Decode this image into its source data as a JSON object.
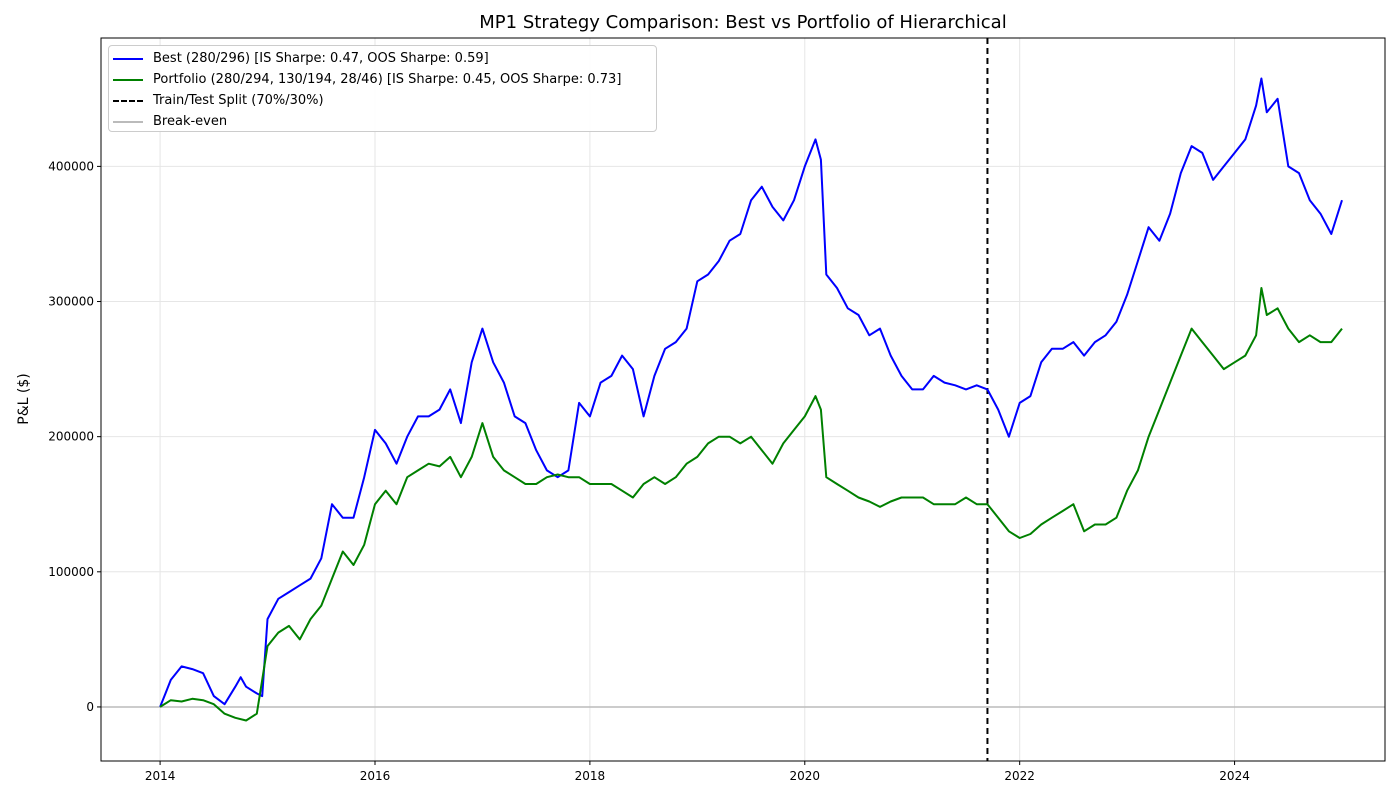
{
  "chart_data": {
    "type": "line",
    "title": "MP1 Strategy Comparison: Best vs Portfolio of Hierarchical",
    "xlabel": "",
    "ylabel": "P&L ($)",
    "xlim": [
      2013.45,
      2025.4
    ],
    "ylim": [
      -40000,
      495000
    ],
    "x_ticks": [
      2014,
      2016,
      2018,
      2020,
      2022,
      2024
    ],
    "y_ticks": [
      0,
      100000,
      200000,
      300000,
      400000
    ],
    "grid": true,
    "legend_position": "upper-left",
    "legend": [
      {
        "label": "Best (280/296) [IS Sharpe: 0.47, OOS Sharpe: 0.59]",
        "color": "#0000ff",
        "style": "solid"
      },
      {
        "label": "Portfolio (280/294, 130/194, 28/46) [IS Sharpe: 0.45, OOS Sharpe: 0.73]",
        "color": "#008000",
        "style": "solid"
      },
      {
        "label": "Train/Test Split (70%/30%)",
        "color": "#000000",
        "style": "dashed"
      },
      {
        "label": "Break-even",
        "color": "#bbbbbb",
        "style": "solid"
      }
    ],
    "split_x": 2021.7,
    "breakeven_y": 0,
    "series": [
      {
        "name": "Best (280/296) [IS Sharpe: 0.47, OOS Sharpe: 0.59]",
        "color": "#0000ff",
        "x": [
          2014.0,
          2014.05,
          2014.1,
          2014.2,
          2014.3,
          2014.4,
          2014.5,
          2014.6,
          2014.7,
          2014.75,
          2014.8,
          2014.9,
          2014.95,
          2015.0,
          2015.1,
          2015.2,
          2015.3,
          2015.4,
          2015.5,
          2015.6,
          2015.7,
          2015.8,
          2015.9,
          2016.0,
          2016.1,
          2016.2,
          2016.3,
          2016.4,
          2016.5,
          2016.6,
          2016.7,
          2016.8,
          2016.9,
          2017.0,
          2017.1,
          2017.2,
          2017.3,
          2017.4,
          2017.5,
          2017.6,
          2017.7,
          2017.8,
          2017.9,
          2018.0,
          2018.1,
          2018.2,
          2018.3,
          2018.4,
          2018.5,
          2018.6,
          2018.7,
          2018.8,
          2018.9,
          2019.0,
          2019.1,
          2019.2,
          2019.3,
          2019.4,
          2019.5,
          2019.6,
          2019.7,
          2019.8,
          2019.9,
          2020.0,
          2020.1,
          2020.15,
          2020.2,
          2020.3,
          2020.4,
          2020.5,
          2020.6,
          2020.7,
          2020.8,
          2020.9,
          2021.0,
          2021.1,
          2021.2,
          2021.3,
          2021.4,
          2021.5,
          2021.6,
          2021.7,
          2021.8,
          2021.9,
          2022.0,
          2022.1,
          2022.2,
          2022.3,
          2022.4,
          2022.5,
          2022.6,
          2022.7,
          2022.8,
          2022.9,
          2023.0,
          2023.1,
          2023.2,
          2023.3,
          2023.4,
          2023.5,
          2023.6,
          2023.7,
          2023.8,
          2023.9,
          2024.0,
          2024.1,
          2024.2,
          2024.25,
          2024.3,
          2024.4,
          2024.5,
          2024.6,
          2024.7,
          2024.8,
          2024.9,
          2025.0
        ],
        "values": [
          0,
          10000,
          20000,
          30000,
          28000,
          25000,
          8000,
          2000,
          15000,
          22000,
          15000,
          10000,
          8000,
          65000,
          80000,
          85000,
          90000,
          95000,
          110000,
          150000,
          140000,
          140000,
          170000,
          205000,
          195000,
          180000,
          200000,
          215000,
          215000,
          220000,
          235000,
          210000,
          255000,
          280000,
          255000,
          240000,
          215000,
          210000,
          190000,
          175000,
          170000,
          175000,
          225000,
          215000,
          240000,
          245000,
          260000,
          250000,
          215000,
          245000,
          265000,
          270000,
          280000,
          315000,
          320000,
          330000,
          345000,
          350000,
          375000,
          385000,
          370000,
          360000,
          375000,
          400000,
          420000,
          405000,
          320000,
          310000,
          295000,
          290000,
          275000,
          280000,
          260000,
          245000,
          235000,
          235000,
          245000,
          240000,
          238000,
          235000,
          238000,
          235000,
          220000,
          200000,
          225000,
          230000,
          255000,
          265000,
          265000,
          270000,
          260000,
          270000,
          275000,
          285000,
          305000,
          330000,
          355000,
          345000,
          365000,
          395000,
          415000,
          410000,
          390000,
          400000,
          410000,
          420000,
          445000,
          465000,
          440000,
          450000,
          400000,
          395000,
          375000,
          365000,
          350000,
          375000
        ]
      },
      {
        "name": "Portfolio (280/294, 130/194, 28/46) [IS Sharpe: 0.45, OOS Sharpe: 0.73]",
        "color": "#008000",
        "x": [
          2014.0,
          2014.1,
          2014.2,
          2014.3,
          2014.4,
          2014.5,
          2014.6,
          2014.7,
          2014.8,
          2014.9,
          2014.95,
          2015.0,
          2015.1,
          2015.2,
          2015.3,
          2015.4,
          2015.5,
          2015.6,
          2015.7,
          2015.8,
          2015.9,
          2016.0,
          2016.1,
          2016.2,
          2016.3,
          2016.4,
          2016.5,
          2016.6,
          2016.7,
          2016.8,
          2016.9,
          2017.0,
          2017.1,
          2017.2,
          2017.3,
          2017.4,
          2017.5,
          2017.6,
          2017.7,
          2017.8,
          2017.9,
          2018.0,
          2018.1,
          2018.2,
          2018.3,
          2018.4,
          2018.5,
          2018.6,
          2018.7,
          2018.8,
          2018.9,
          2019.0,
          2019.1,
          2019.2,
          2019.3,
          2019.4,
          2019.5,
          2019.6,
          2019.7,
          2019.8,
          2019.9,
          2020.0,
          2020.1,
          2020.15,
          2020.2,
          2020.3,
          2020.4,
          2020.5,
          2020.6,
          2020.7,
          2020.8,
          2020.9,
          2021.0,
          2021.1,
          2021.2,
          2021.3,
          2021.4,
          2021.5,
          2021.6,
          2021.7,
          2021.8,
          2021.9,
          2022.0,
          2022.1,
          2022.2,
          2022.3,
          2022.4,
          2022.5,
          2022.6,
          2022.7,
          2022.8,
          2022.9,
          2023.0,
          2023.1,
          2023.2,
          2023.3,
          2023.4,
          2023.5,
          2023.6,
          2023.7,
          2023.8,
          2023.9,
          2024.0,
          2024.1,
          2024.2,
          2024.25,
          2024.3,
          2024.4,
          2024.5,
          2024.6,
          2024.7,
          2024.8,
          2024.9,
          2025.0
        ],
        "values": [
          0,
          5000,
          4000,
          6000,
          5000,
          2000,
          -5000,
          -8000,
          -10000,
          -5000,
          20000,
          45000,
          55000,
          60000,
          50000,
          65000,
          75000,
          95000,
          115000,
          105000,
          120000,
          150000,
          160000,
          150000,
          170000,
          175000,
          180000,
          178000,
          185000,
          170000,
          185000,
          210000,
          185000,
          175000,
          170000,
          165000,
          165000,
          170000,
          172000,
          170000,
          170000,
          165000,
          165000,
          165000,
          160000,
          155000,
          165000,
          170000,
          165000,
          170000,
          180000,
          185000,
          195000,
          200000,
          200000,
          195000,
          200000,
          190000,
          180000,
          195000,
          205000,
          215000,
          230000,
          220000,
          170000,
          165000,
          160000,
          155000,
          152000,
          148000,
          152000,
          155000,
          155000,
          155000,
          150000,
          150000,
          150000,
          155000,
          150000,
          150000,
          140000,
          130000,
          125000,
          128000,
          135000,
          140000,
          145000,
          150000,
          130000,
          135000,
          135000,
          140000,
          160000,
          175000,
          200000,
          220000,
          240000,
          260000,
          280000,
          270000,
          260000,
          250000,
          255000,
          260000,
          275000,
          310000,
          290000,
          295000,
          280000,
          270000,
          275000,
          270000,
          270000,
          280000
        ]
      }
    ]
  }
}
